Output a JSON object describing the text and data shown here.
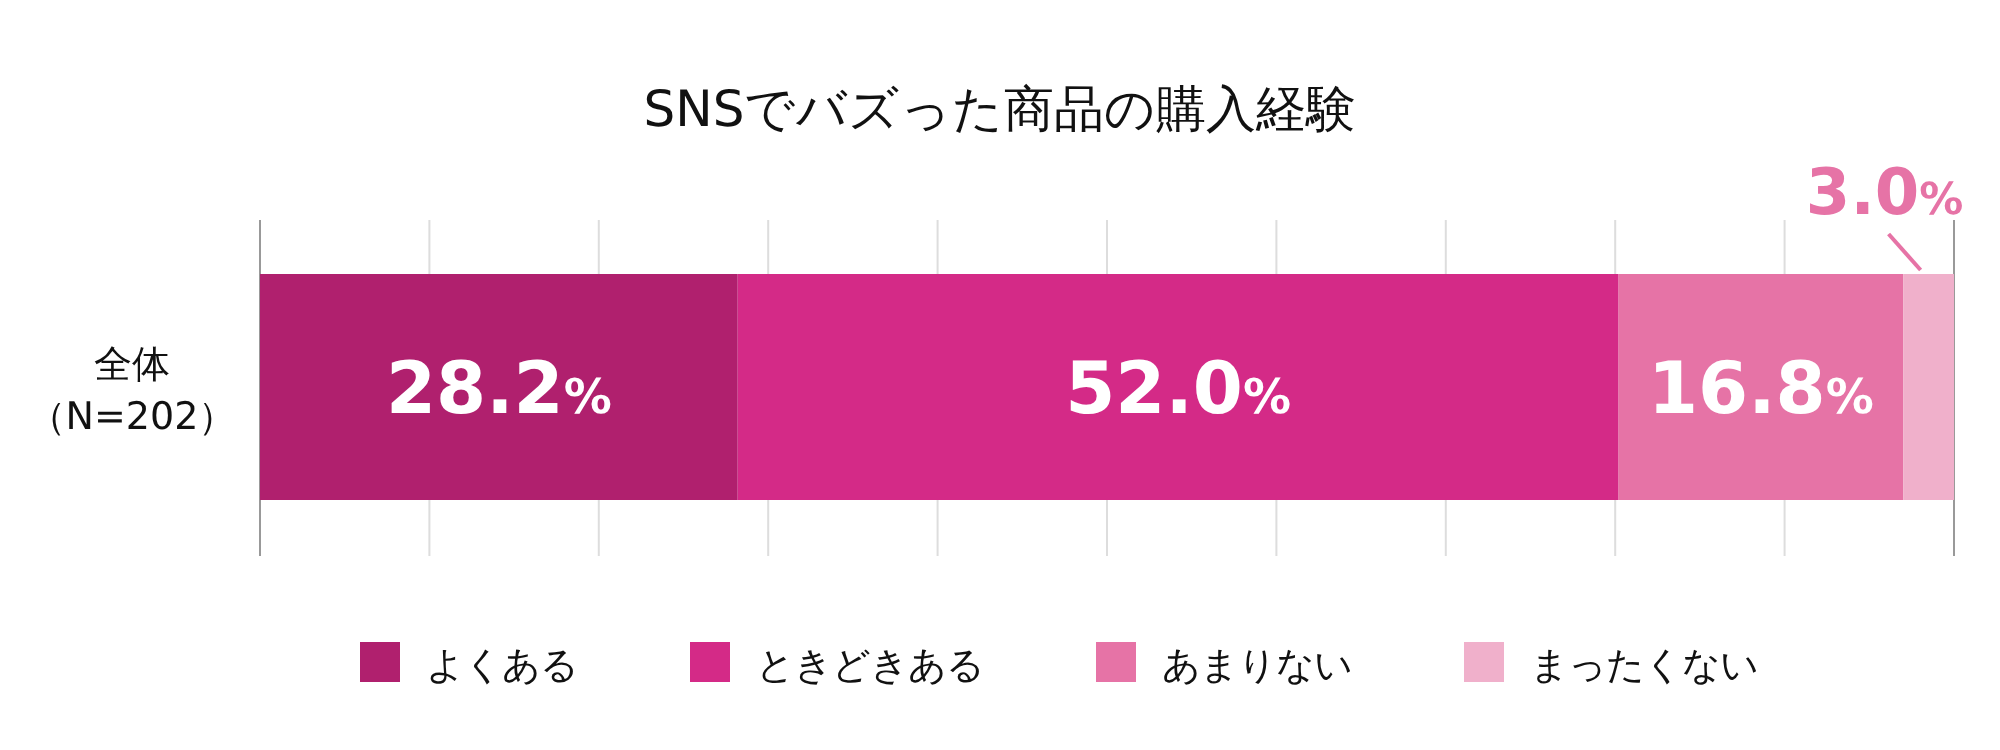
{
  "chart_data": {
    "type": "bar",
    "title": "SNSでバズった商品の購入経験",
    "orientation": "horizontal",
    "stacked": true,
    "categories": [
      "全体（N=202）"
    ],
    "series": [
      {
        "name": "よくある",
        "color": "#b0206e",
        "values": [
          28.2
        ],
        "value_labels": [
          "28.2%"
        ]
      },
      {
        "name": "ときどきある",
        "color": "#d42a87",
        "values": [
          52.0
        ],
        "value_labels": [
          "52.0%"
        ]
      },
      {
        "name": "あまりない",
        "color": "#e673a6",
        "values": [
          16.8
        ],
        "value_labels": [
          "16.8%"
        ]
      },
      {
        "name": "まったくない",
        "color": "#f0b0cb",
        "values": [
          3.0
        ],
        "value_labels": [
          "3.0%"
        ]
      }
    ],
    "xlim": [
      0,
      100
    ],
    "xticks": [
      {
        "value": 0,
        "label": null
      },
      {
        "value": 10,
        "label": null
      },
      {
        "value": 20,
        "label": null
      },
      {
        "value": 30,
        "label": null
      },
      {
        "value": 40,
        "label": null
      },
      {
        "value": 50,
        "label": null
      },
      {
        "value": 60,
        "label": null
      },
      {
        "value": 70,
        "label": null
      },
      {
        "value": 80,
        "label": null
      },
      {
        "value": 90,
        "label": null
      },
      {
        "value": 100,
        "label": null
      }
    ],
    "grid": "x",
    "tick_labels": "y",
    "legend": "bottom"
  }
}
